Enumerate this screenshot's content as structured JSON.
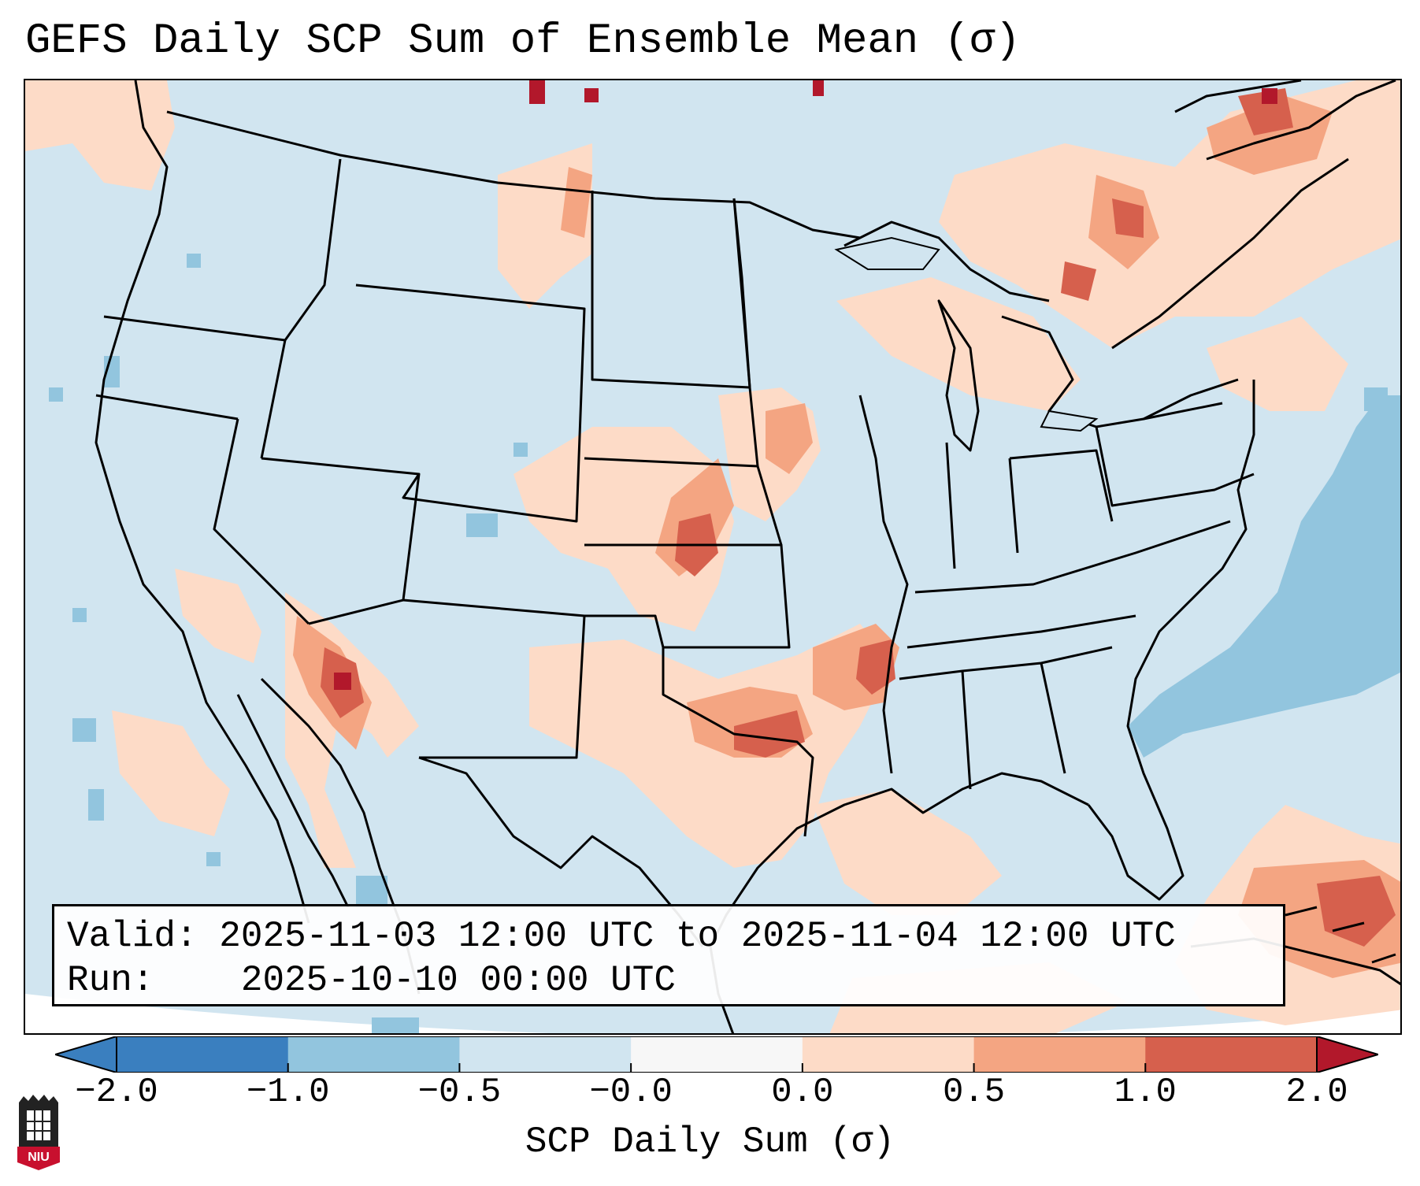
{
  "title": "GEFS Daily SCP Sum of Ensemble Mean (σ)",
  "info": {
    "valid_label": "Valid:",
    "valid_text": "2025-11-03 12:00 UTC to 2025-11-04 12:00 UTC",
    "run_label": "Run:",
    "run_text": "2025-10-10 00:00 UTC"
  },
  "colorbar": {
    "label": "SCP Daily Sum (σ)",
    "ticks": [
      "−2.0",
      "−1.0",
      "−0.5",
      "−0.0",
      "0.0",
      "0.5",
      "1.0",
      "2.0"
    ],
    "colors": [
      "#3a7fbf",
      "#92c5de",
      "#d1e5f0",
      "#f7f7f7",
      "#fddbc7",
      "#f4a582",
      "#d6604d",
      "#b2182b"
    ]
  },
  "logo": {
    "text": "NIU"
  },
  "colors": {
    "background_field": "#d1e5f0",
    "light_pos": "#fddbc7",
    "mid_pos": "#f4a582",
    "strong_pos": "#d6604d",
    "max_pos": "#b2182b",
    "light_neg": "#92c5de"
  }
}
